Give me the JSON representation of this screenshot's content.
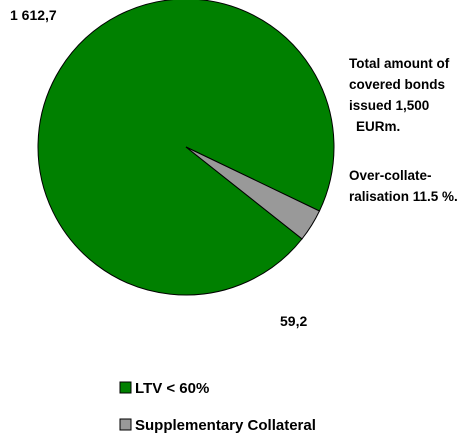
{
  "chart_data": {
    "type": "pie",
    "categories": [
      "LTV < 60%",
      "Supplementary Collateral"
    ],
    "values": [
      1612.7,
      59.2
    ],
    "value_labels": [
      "1 612,7",
      "59,2"
    ],
    "colors": [
      "#008000",
      "#999999"
    ],
    "legend_position": "bottom"
  },
  "annotations": {
    "total_lines": [
      "Total amount of",
      "covered bonds",
      "issued 1,500",
      "EURm."
    ],
    "overcollateral_lines": [
      "Over-collate-",
      "ralisation 11.5 %."
    ]
  }
}
